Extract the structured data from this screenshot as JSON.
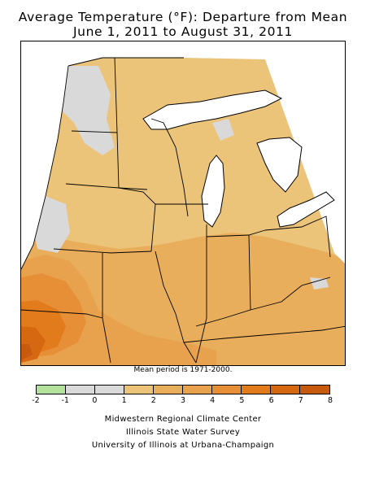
{
  "title": {
    "line1": "Average Temperature (°F): Departure from Mean",
    "line2": "June 1, 2011 to August 31, 2011"
  },
  "note": "Mean period is 1971-2000.",
  "legend": {
    "ticks": [
      "-2",
      "-1",
      "0",
      "1",
      "2",
      "3",
      "4",
      "5",
      "6",
      "7",
      "8"
    ],
    "bins": [
      {
        "from": -2,
        "to": -1,
        "color": "#b3e29c"
      },
      {
        "from": -1,
        "to": 0,
        "color": "#d9d9d9"
      },
      {
        "from": 0,
        "to": 1,
        "color": "#d9d9d9"
      },
      {
        "from": 1,
        "to": 2,
        "color": "#ebc479"
      },
      {
        "from": 2,
        "to": 3,
        "color": "#e9ae5c"
      },
      {
        "from": 3,
        "to": 4,
        "color": "#e8a24e"
      },
      {
        "from": 4,
        "to": 5,
        "color": "#e78f36"
      },
      {
        "from": 5,
        "to": 6,
        "color": "#e27b1c"
      },
      {
        "from": 6,
        "to": 7,
        "color": "#d66812"
      },
      {
        "from": 7,
        "to": 8,
        "color": "#c85a10"
      }
    ]
  },
  "credits": [
    "Midwestern Regional Climate Center",
    "Illinois State Water Survey",
    "University of Illinois at Urbana-Champaign"
  ],
  "colors": {
    "water": "#ffffff",
    "border": "#000000",
    "background": "#ffffff"
  }
}
